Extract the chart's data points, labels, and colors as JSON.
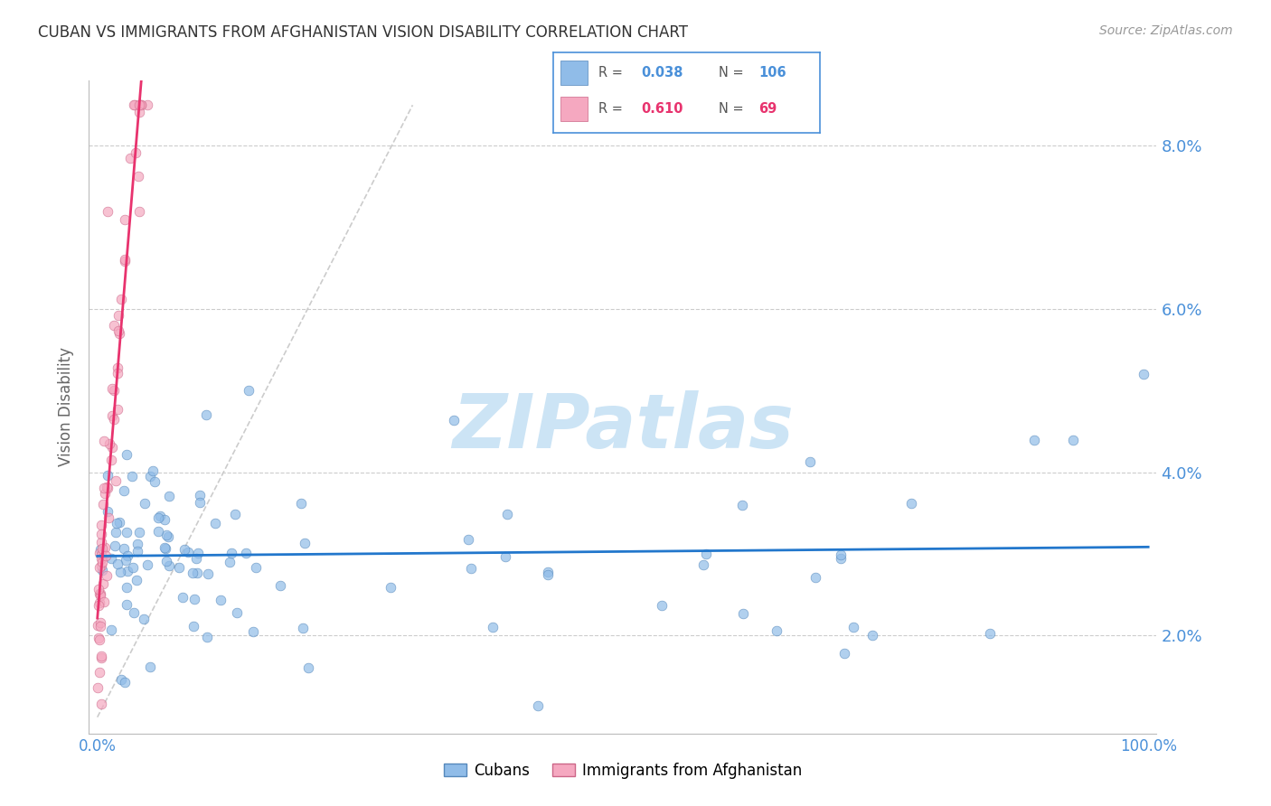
{
  "title": "CUBAN VS IMMIGRANTS FROM AFGHANISTAN VISION DISABILITY CORRELATION CHART",
  "source": "Source: ZipAtlas.com",
  "ylabel": "Vision Disability",
  "yright_ticks": [
    0.02,
    0.04,
    0.06,
    0.08
  ],
  "yright_labels": [
    "2.0%",
    "4.0%",
    "6.0%",
    "8.0%"
  ],
  "xlim": [
    -0.008,
    1.008
  ],
  "ylim": [
    0.008,
    0.088
  ],
  "title_color": "#333333",
  "source_color": "#999999",
  "axis_color": "#4a90d9",
  "grid_color": "#cccccc",
  "watermark_text": "ZIPatlas",
  "watermark_color": "#cce4f5",
  "blue_line_color": "#2277cc",
  "pink_line_color": "#e8336e",
  "diag_line_color": "#cccccc",
  "blue_scatter_color": "#90bce8",
  "pink_scatter_color": "#f5a8c0",
  "blue_scatter_edge": "#5588bb",
  "pink_scatter_edge": "#cc6688",
  "legend_box_color": "#4a90d9",
  "legend_R_blue": "#4a90d9",
  "legend_N_blue": "#4a90d9",
  "legend_R_pink": "#e8336e",
  "legend_N_pink": "#e8336e"
}
